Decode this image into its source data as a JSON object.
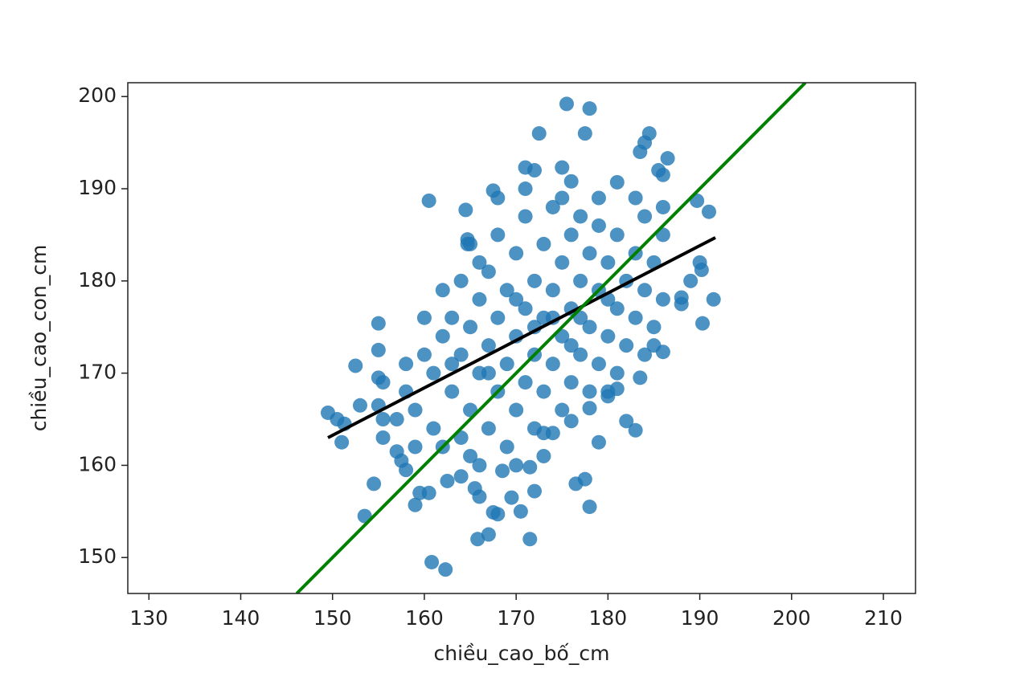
{
  "chart_data": {
    "type": "scatter",
    "x_label": "chiều_cao_bố_cm",
    "y_label": "chiều_cao_con_cm",
    "xlim": [
      127.7,
      213.5
    ],
    "ylim": [
      146.1,
      201.5
    ],
    "xticks": [
      130,
      140,
      150,
      160,
      170,
      180,
      190,
      200,
      210
    ],
    "yticks": [
      150,
      160,
      170,
      180,
      190,
      200
    ],
    "grid": false,
    "points": {
      "color": "#1f77b4",
      "x": [
        175.5,
        178,
        172.5,
        177.5,
        184.5,
        184,
        183.5,
        186.5,
        171,
        172,
        175,
        176,
        181,
        185.5,
        186,
        160.5,
        167.5,
        189.7,
        191,
        164.5,
        164.7,
        164.7,
        190,
        190.2,
        189,
        191.5,
        190.3,
        188,
        188,
        155,
        155,
        152.5,
        155,
        155.5,
        149.5,
        150.5,
        151.3,
        151,
        153,
        155,
        155.5,
        155.5,
        154.5,
        153.5,
        157,
        157.5,
        158,
        159.5,
        159,
        160.5,
        160.8,
        162.3,
        162.5,
        164,
        165.5,
        166,
        165.8,
        167,
        167.5,
        168,
        169.5,
        170.5,
        172,
        171.5,
        176.5,
        177.5,
        178,
        179,
        182,
        183,
        183.5,
        186,
        185,
        178,
        180,
        171.5,
        168.5,
        166,
        173,
        174,
        176,
        180,
        181,
        160,
        161,
        162,
        163,
        163,
        164,
        164,
        165,
        165,
        166,
        166,
        166,
        167,
        167,
        167,
        168,
        168,
        168,
        169,
        169,
        169,
        170,
        170,
        170,
        171,
        171,
        171,
        172,
        172,
        172,
        173,
        173,
        173,
        174,
        174,
        174,
        175,
        175,
        175,
        176,
        176,
        176,
        177,
        177,
        177,
        178,
        178,
        178,
        179,
        179,
        179,
        180,
        180,
        181,
        181,
        181,
        182,
        182,
        183,
        183,
        184,
        184,
        184,
        185,
        185,
        186,
        186,
        159,
        161,
        162,
        164,
        165,
        170,
        173,
        158,
        160,
        162,
        165,
        168,
        171,
        175,
        179,
        183,
        186,
        159,
        157,
        158,
        163,
        172,
        176,
        174,
        170,
        180,
        167,
        177
      ],
      "y": [
        199.2,
        198.7,
        196,
        196,
        196,
        195,
        194,
        193.3,
        192.3,
        192,
        192.3,
        190.8,
        190.7,
        192,
        191.5,
        188.7,
        189.8,
        188.7,
        187.5,
        187.7,
        184.5,
        184,
        182,
        181.2,
        180,
        178,
        175.4,
        178.2,
        177.5,
        175.4,
        172.5,
        170.8,
        169.5,
        169,
        165.7,
        165,
        164.5,
        162.5,
        166.5,
        166.5,
        165,
        163,
        158,
        154.5,
        161.5,
        160.5,
        159.5,
        157,
        155.7,
        157,
        149.5,
        148.7,
        158.3,
        158.8,
        157.5,
        156.6,
        152,
        152.5,
        154.9,
        154.7,
        156.5,
        155,
        157.2,
        152,
        158,
        158.5,
        155.5,
        162.5,
        164.8,
        163.8,
        169.5,
        172.3,
        173,
        166.2,
        167.5,
        159.8,
        159.4,
        160,
        163.5,
        163.5,
        164.8,
        168,
        168.3,
        172,
        170,
        174,
        168,
        176,
        172,
        180,
        166,
        175,
        170,
        178,
        182,
        164,
        173,
        181,
        168,
        176,
        185,
        162,
        171,
        179,
        166,
        174,
        183,
        169,
        177,
        187,
        164,
        172,
        180,
        168,
        176,
        184,
        171,
        179,
        188,
        166,
        174,
        182,
        169,
        177,
        185,
        172,
        180,
        187,
        168,
        175,
        183,
        171,
        179,
        186,
        174,
        182,
        170,
        177,
        185,
        173,
        180,
        176,
        183,
        172,
        179,
        187,
        175,
        182,
        178,
        185,
        166,
        164,
        162,
        163,
        161,
        160,
        161,
        168,
        176,
        179,
        184,
        189,
        190,
        189,
        189,
        189,
        188,
        162,
        165,
        171,
        171,
        175,
        173,
        176,
        178,
        178,
        170,
        176
      ]
    },
    "fit_line": {
      "color": "#000000",
      "x": [
        149.5,
        191.7
      ],
      "y": [
        163.0,
        184.7
      ]
    },
    "identity_line": {
      "color": "#008000",
      "x": [
        146.1,
        201.5
      ],
      "y": [
        146.1,
        201.5
      ]
    }
  }
}
